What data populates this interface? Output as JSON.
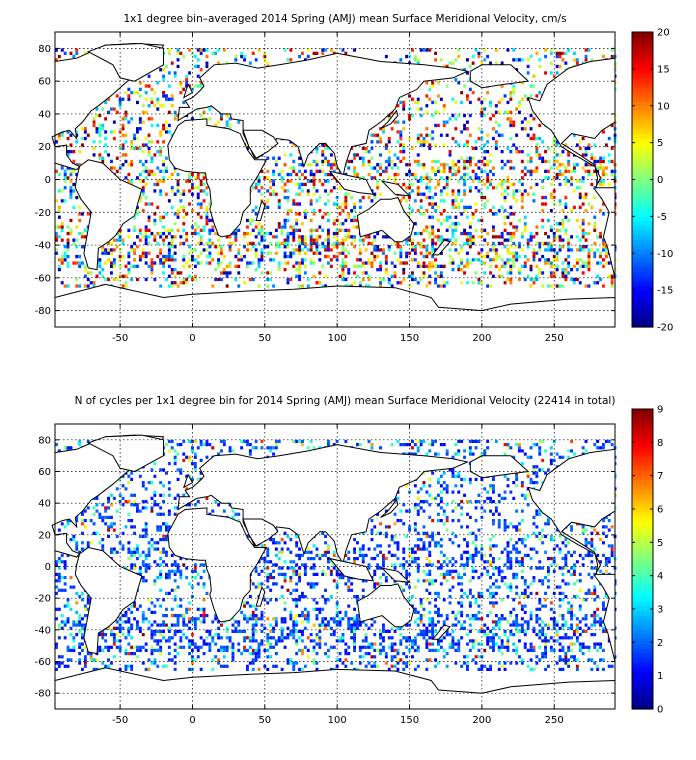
{
  "chart_data": [
    {
      "type": "heatmap",
      "title": "1x1 degree bin–averaged 2014 Spring (AMJ) mean Surface Meridional Velocity, cm/s",
      "xlabel": "",
      "ylabel": "",
      "xlim": [
        -95,
        292
      ],
      "ylim": [
        -90,
        90
      ],
      "xticks": [
        "-50",
        "0",
        "50",
        "100",
        "150",
        "200",
        "250"
      ],
      "yticks": [
        "80",
        "60",
        "40",
        "20",
        "0",
        "-20",
        "-40",
        "-60",
        "-80"
      ],
      "grid": true,
      "colorbar": {
        "min": -20,
        "max": 20,
        "ticks": [
          "20",
          "15",
          "10",
          "5",
          "0",
          "-5",
          "-10",
          "-15",
          "-20"
        ],
        "colormap": "jet"
      }
    },
    {
      "type": "heatmap",
      "title": "N of cycles per 1x1 degree bin for 2014 Spring (AMJ) mean Surface Meridional Velocity (22414 in total)",
      "xlabel": "",
      "ylabel": "",
      "xlim": [
        -95,
        292
      ],
      "ylim": [
        -90,
        90
      ],
      "xticks": [
        "-50",
        "0",
        "50",
        "100",
        "150",
        "200",
        "250"
      ],
      "yticks": [
        "80",
        "60",
        "40",
        "20",
        "0",
        "-20",
        "-40",
        "-60",
        "-80"
      ],
      "grid": true,
      "colorbar": {
        "min": 0,
        "max": 9,
        "ticks": [
          "9",
          "8",
          "7",
          "6",
          "5",
          "4",
          "3",
          "2",
          "1",
          "0"
        ],
        "colormap": "jet"
      }
    }
  ]
}
